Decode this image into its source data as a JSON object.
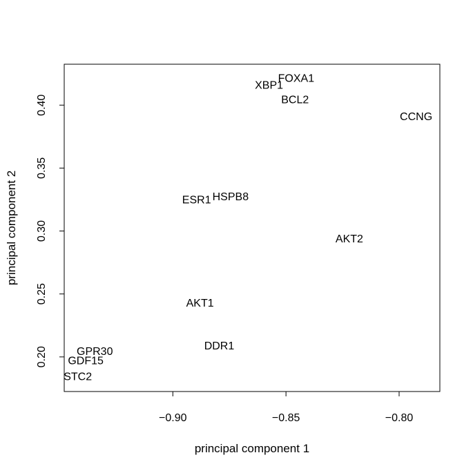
{
  "chart_data": {
    "type": "scatter",
    "title": "",
    "xlabel": "principal component 1",
    "ylabel": "principal component 2",
    "xlim": [
      -0.948,
      -0.782
    ],
    "ylim": [
      0.1725,
      0.4325
    ],
    "xticks": [
      -0.9,
      -0.85,
      -0.8
    ],
    "xtick_labels": [
      "−0.90",
      "−0.85",
      "−0.80"
    ],
    "yticks": [
      0.2,
      0.25,
      0.3,
      0.35,
      0.4
    ],
    "ytick_labels": [
      "0.20",
      "0.25",
      "0.30",
      "0.35",
      "0.40"
    ],
    "grid": false,
    "legend": "none",
    "marker": "text-label",
    "points": [
      {
        "label": "FOXA1",
        "x": -0.8455,
        "y": 0.421
      },
      {
        "label": "XBP1",
        "x": -0.8575,
        "y": 0.4155
      },
      {
        "label": "BCL2",
        "x": -0.846,
        "y": 0.404
      },
      {
        "label": "CCNG",
        "x": -0.7925,
        "y": 0.3905
      },
      {
        "label": "ESR1",
        "x": -0.8895,
        "y": 0.3245
      },
      {
        "label": "HSPB8",
        "x": -0.8745,
        "y": 0.327
      },
      {
        "label": "AKT2",
        "x": -0.822,
        "y": 0.2935
      },
      {
        "label": "AKT1",
        "x": -0.888,
        "y": 0.2425
      },
      {
        "label": "DDR1",
        "x": -0.8795,
        "y": 0.2085
      },
      {
        "label": "GPR30",
        "x": -0.9345,
        "y": 0.204
      },
      {
        "label": "GDF15",
        "x": -0.9385,
        "y": 0.1965
      },
      {
        "label": "STC2",
        "x": -0.942,
        "y": 0.184
      }
    ]
  }
}
